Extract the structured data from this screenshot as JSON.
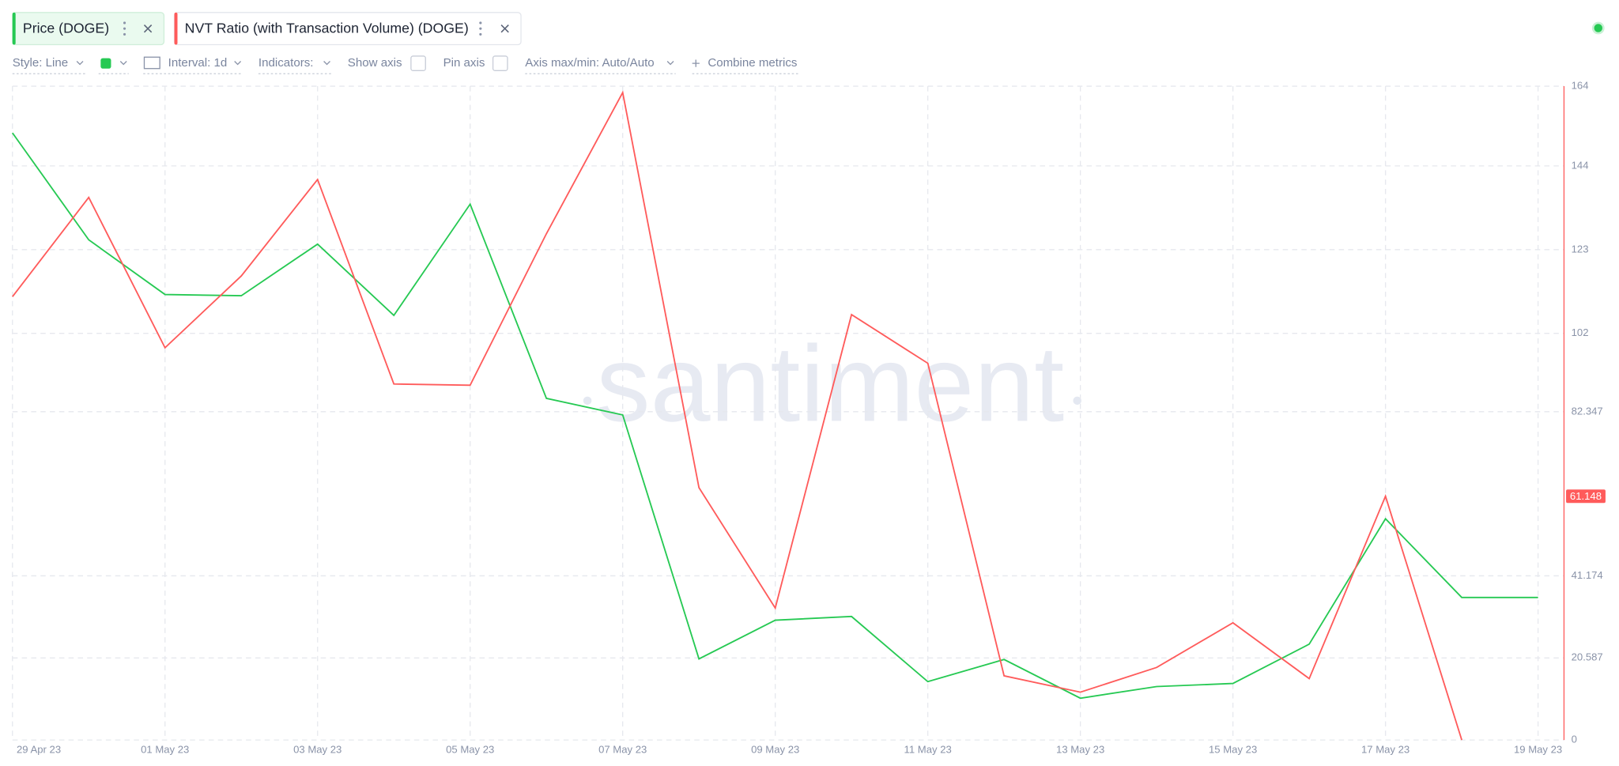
{
  "toolbar": {
    "style": "Style: Line",
    "interval": "Interval: 1d",
    "indicators": "Indicators:",
    "show_axis": "Show axis",
    "pin_axis": "Pin axis",
    "axis_range": "Axis max/min: Auto/Auto",
    "combine": "Combine metrics"
  },
  "watermark": "santiment",
  "chart_data": {
    "type": "line",
    "categories": [
      "29 Apr 23",
      null,
      "01 May 23",
      null,
      "03 May 23",
      null,
      "05 May 23",
      null,
      "07 May 23",
      null,
      "09 May 23",
      null,
      "11 May 23",
      null,
      "13 May 23",
      null,
      "15 May 23",
      null,
      "17 May 23",
      null,
      "19 May 23"
    ],
    "series": [
      {
        "name": "Price (DOGE)",
        "color": "#26c953",
        "axis": "y2",
        "values": [
          0.081,
          0.07926,
          0.07837,
          0.07835,
          0.07919,
          0.07803,
          0.07984,
          0.07668,
          0.07641,
          0.07244,
          0.07307,
          0.07313,
          0.07207,
          0.07243,
          0.0718,
          0.07199,
          0.07204,
          0.07268,
          0.07472,
          0.07344,
          0.07344
        ]
      },
      {
        "name": "NVT Ratio (with Transaction Volume) (DOGE)",
        "color": "#ff5b5b",
        "values": [
          111.2,
          136.1,
          98.4,
          116.4,
          140.6,
          89.3,
          89.0,
          127.0,
          162.4,
          63.3,
          33.1,
          106.7,
          94.5,
          16.1,
          12.0,
          18.2,
          29.4,
          15.4,
          61.148,
          0,
          null
        ]
      }
    ],
    "ylim": [
      0,
      164
    ],
    "yticks": [
      0,
      20.587,
      41.174,
      82.347,
      102,
      123,
      144,
      164
    ],
    "y2lim": [
      0.07112,
      0.08176
    ],
    "grid": true
  }
}
